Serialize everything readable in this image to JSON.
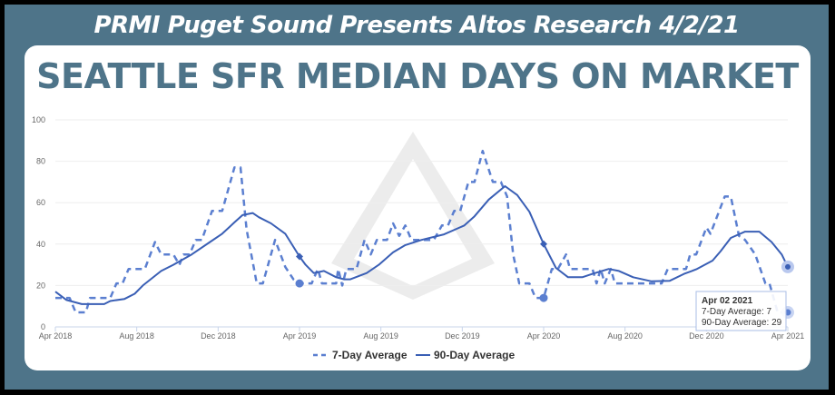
{
  "header": {
    "title": "PRMI Puget Sound Presents Altos Research 4/2/21"
  },
  "chart_title": "SEATTLE SFR MEDIAN DAYS ON MARKET",
  "colors": {
    "frame": "#4e7489",
    "series": "#3a5fb5",
    "dashed": "#5b7fd0"
  },
  "chart_data": {
    "type": "line",
    "title": "SEATTLE SFR MEDIAN DAYS ON MARKET",
    "x_unit": "months since Apr 2018",
    "xlim": [
      0,
      36
    ],
    "ylim": [
      0,
      100
    ],
    "yticks": [
      "0",
      "20",
      "40",
      "60",
      "80",
      "100"
    ],
    "xticks": [
      {
        "m": 0,
        "label": "Apr 2018"
      },
      {
        "m": 4,
        "label": "Aug 2018"
      },
      {
        "m": 8,
        "label": "Dec 2018"
      },
      {
        "m": 12,
        "label": "Apr 2019"
      },
      {
        "m": 16,
        "label": "Aug 2019"
      },
      {
        "m": 20,
        "label": "Dec 2019"
      },
      {
        "m": 24,
        "label": "Apr 2020"
      },
      {
        "m": 28,
        "label": "Aug 2020"
      },
      {
        "m": 32,
        "label": "Dec 2020"
      },
      {
        "m": 36,
        "label": "Apr 2021"
      }
    ],
    "grid": true,
    "legend_position": "bottom",
    "series": [
      {
        "name": "7-Day Average",
        "style": "dashed",
        "points": [
          [
            0,
            14
          ],
          [
            0.7,
            14
          ],
          [
            1,
            7
          ],
          [
            1.5,
            7
          ],
          [
            1.7,
            14
          ],
          [
            2.7,
            14
          ],
          [
            3,
            21
          ],
          [
            3.3,
            21
          ],
          [
            3.6,
            28
          ],
          [
            4.4,
            28
          ],
          [
            4.9,
            41
          ],
          [
            5.2,
            35
          ],
          [
            5.8,
            35
          ],
          [
            6.1,
            30
          ],
          [
            6.3,
            35
          ],
          [
            6.6,
            35
          ],
          [
            6.9,
            42
          ],
          [
            7.2,
            42
          ],
          [
            7.7,
            56
          ],
          [
            8.2,
            56
          ],
          [
            8.8,
            77
          ],
          [
            9.1,
            77
          ],
          [
            9.4,
            47
          ],
          [
            9.9,
            21
          ],
          [
            10.2,
            21
          ],
          [
            10.8,
            42
          ],
          [
            11.3,
            29
          ],
          [
            11.7,
            23
          ],
          [
            12,
            21
          ],
          [
            12.6,
            21
          ],
          [
            12.9,
            28
          ],
          [
            13.1,
            21
          ],
          [
            13.8,
            21
          ],
          [
            13.9,
            28
          ],
          [
            14.1,
            20
          ],
          [
            14.3,
            28
          ],
          [
            14.8,
            28
          ],
          [
            15.2,
            42
          ],
          [
            15.5,
            35
          ],
          [
            15.8,
            42
          ],
          [
            16.3,
            42
          ],
          [
            16.6,
            50
          ],
          [
            16.9,
            44
          ],
          [
            17.2,
            49
          ],
          [
            17.5,
            42
          ],
          [
            18.4,
            42
          ],
          [
            18.6,
            42
          ],
          [
            19,
            49
          ],
          [
            19.3,
            49
          ],
          [
            19.6,
            56
          ],
          [
            19.9,
            56
          ],
          [
            20.3,
            70
          ],
          [
            20.6,
            70
          ],
          [
            21,
            85
          ],
          [
            21.5,
            70
          ],
          [
            21.9,
            70
          ],
          [
            22.2,
            63
          ],
          [
            22.5,
            35
          ],
          [
            22.8,
            21
          ],
          [
            23.3,
            21
          ],
          [
            23.6,
            14
          ],
          [
            24,
            14
          ],
          [
            24.4,
            28
          ],
          [
            24.7,
            28
          ],
          [
            25.1,
            35
          ],
          [
            25.3,
            28
          ],
          [
            26.4,
            28
          ],
          [
            26.6,
            21
          ],
          [
            26.8,
            28
          ],
          [
            27,
            21
          ],
          [
            27.3,
            28
          ],
          [
            27.5,
            21
          ],
          [
            29.8,
            21
          ],
          [
            30.1,
            28
          ],
          [
            31,
            28
          ],
          [
            31.2,
            35
          ],
          [
            31.5,
            35
          ],
          [
            32,
            48
          ],
          [
            32.2,
            45
          ],
          [
            32.9,
            63
          ],
          [
            33.2,
            63
          ],
          [
            33.6,
            44
          ],
          [
            33.9,
            42
          ],
          [
            34.4,
            35
          ],
          [
            34.9,
            21
          ],
          [
            35.1,
            21
          ],
          [
            35.5,
            7
          ],
          [
            36,
            7
          ]
        ]
      },
      {
        "name": "90-Day Average",
        "style": "solid",
        "points": [
          [
            0,
            17
          ],
          [
            0.55,
            13
          ],
          [
            1.3,
            11
          ],
          [
            2.4,
            11
          ],
          [
            2.7,
            12.5
          ],
          [
            3.4,
            13.5
          ],
          [
            3.9,
            16
          ],
          [
            4.3,
            20
          ],
          [
            5.2,
            27
          ],
          [
            5.8,
            30
          ],
          [
            6.7,
            35
          ],
          [
            7.6,
            41
          ],
          [
            8.2,
            45
          ],
          [
            8.8,
            50.5
          ],
          [
            9.2,
            54
          ],
          [
            9.7,
            55
          ],
          [
            10,
            53
          ],
          [
            10.6,
            50
          ],
          [
            11.3,
            45
          ],
          [
            12,
            34
          ],
          [
            12.3,
            30
          ],
          [
            12.7,
            26
          ],
          [
            13.2,
            27
          ],
          [
            13.8,
            24
          ],
          [
            14.2,
            23
          ],
          [
            14.5,
            23
          ],
          [
            15.3,
            26
          ],
          [
            15.9,
            30
          ],
          [
            16.6,
            36
          ],
          [
            17.2,
            39.5
          ],
          [
            18,
            42
          ],
          [
            19.1,
            44.7
          ],
          [
            20.1,
            49
          ],
          [
            20.6,
            53.4
          ],
          [
            21.3,
            61.5
          ],
          [
            22.1,
            68
          ],
          [
            22.7,
            63.7
          ],
          [
            23.3,
            55.6
          ],
          [
            24,
            40
          ],
          [
            24.6,
            28.5
          ],
          [
            25.2,
            24
          ],
          [
            25.9,
            24
          ],
          [
            26.4,
            25.6
          ],
          [
            27.2,
            28
          ],
          [
            27.7,
            27
          ],
          [
            28.4,
            24
          ],
          [
            29.3,
            22
          ],
          [
            30.2,
            22.3
          ],
          [
            30.9,
            25.6
          ],
          [
            31.5,
            27.8
          ],
          [
            32.3,
            32
          ],
          [
            32.7,
            36.6
          ],
          [
            33.2,
            43
          ],
          [
            33.9,
            46
          ],
          [
            34.6,
            46
          ],
          [
            35.2,
            41
          ],
          [
            35.7,
            35
          ],
          [
            36,
            29
          ]
        ]
      }
    ],
    "markers": [
      {
        "series": "90-Day Average",
        "m": 12,
        "v": 34,
        "shape": "diamond"
      },
      {
        "series": "90-Day Average",
        "m": 24,
        "v": 40,
        "shape": "diamond"
      },
      {
        "series": "7-Day Average",
        "m": 12,
        "v": 21,
        "shape": "circle"
      },
      {
        "series": "7-Day Average",
        "m": 24,
        "v": 14,
        "shape": "circle"
      }
    ],
    "tooltip": {
      "date": "Apr 02 2021",
      "line1": "7-Day Average: 7",
      "line2": "90-Day Average: 29",
      "m": 36,
      "v7": 7,
      "v90": 29
    }
  }
}
